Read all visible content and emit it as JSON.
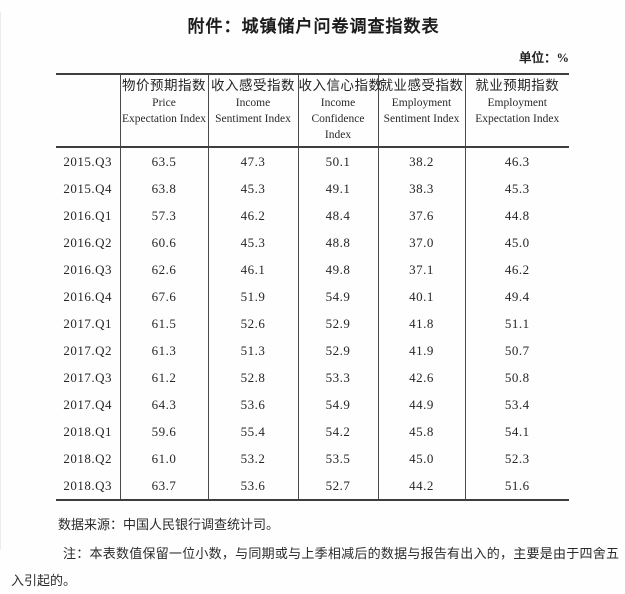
{
  "title": "附件：城镇储户问卷调查指数表",
  "unit_label": "单位：%",
  "table": {
    "corner_label": "",
    "columns": [
      {
        "cn": "物价预期指数",
        "en1": "Price",
        "en2": "Expectation Index"
      },
      {
        "cn": "收入感受指数",
        "en1": "Income",
        "en2": "Sentiment Index"
      },
      {
        "cn": "收入信心指数",
        "en1": "Income",
        "en2": "Confidence Index"
      },
      {
        "cn": "就业感受指数",
        "en1": "Employment",
        "en2": "Sentiment Index"
      },
      {
        "cn": "就业预期指数",
        "en1": "Employment",
        "en2": "Expectation Index"
      }
    ],
    "rows": [
      {
        "period": "2015.Q3",
        "values": [
          "63.5",
          "47.3",
          "50.1",
          "38.2",
          "46.3"
        ]
      },
      {
        "period": "2015.Q4",
        "values": [
          "63.8",
          "45.3",
          "49.1",
          "38.3",
          "45.3"
        ]
      },
      {
        "period": "2016.Q1",
        "values": [
          "57.3",
          "46.2",
          "48.4",
          "37.6",
          "44.8"
        ]
      },
      {
        "period": "2016.Q2",
        "values": [
          "60.6",
          "45.3",
          "48.8",
          "37.0",
          "45.0"
        ]
      },
      {
        "period": "2016.Q3",
        "values": [
          "62.6",
          "46.1",
          "49.8",
          "37.1",
          "46.2"
        ]
      },
      {
        "period": "2016.Q4",
        "values": [
          "67.6",
          "51.9",
          "54.9",
          "40.1",
          "49.4"
        ]
      },
      {
        "period": "2017.Q1",
        "values": [
          "61.5",
          "52.6",
          "52.9",
          "41.8",
          "51.1"
        ]
      },
      {
        "period": "2017.Q2",
        "values": [
          "61.3",
          "51.3",
          "52.9",
          "41.9",
          "50.7"
        ]
      },
      {
        "period": "2017.Q3",
        "values": [
          "61.2",
          "52.8",
          "53.3",
          "42.6",
          "50.8"
        ]
      },
      {
        "period": "2017.Q4",
        "values": [
          "64.3",
          "53.6",
          "54.9",
          "44.9",
          "53.4"
        ]
      },
      {
        "period": "2018.Q1",
        "values": [
          "59.6",
          "55.4",
          "54.2",
          "45.8",
          "54.1"
        ]
      },
      {
        "period": "2018.Q2",
        "values": [
          "61.0",
          "53.2",
          "53.5",
          "45.0",
          "52.3"
        ]
      },
      {
        "period": "2018.Q3",
        "values": [
          "63.7",
          "53.6",
          "52.7",
          "44.2",
          "51.6"
        ]
      }
    ]
  },
  "source": "数据来源：中国人民银行调查统计司。",
  "note": "注：本表数值保留一位小数，与同期或与上季相减后的数据与报告有出入的，主要是由于四舍五入引起的。"
}
